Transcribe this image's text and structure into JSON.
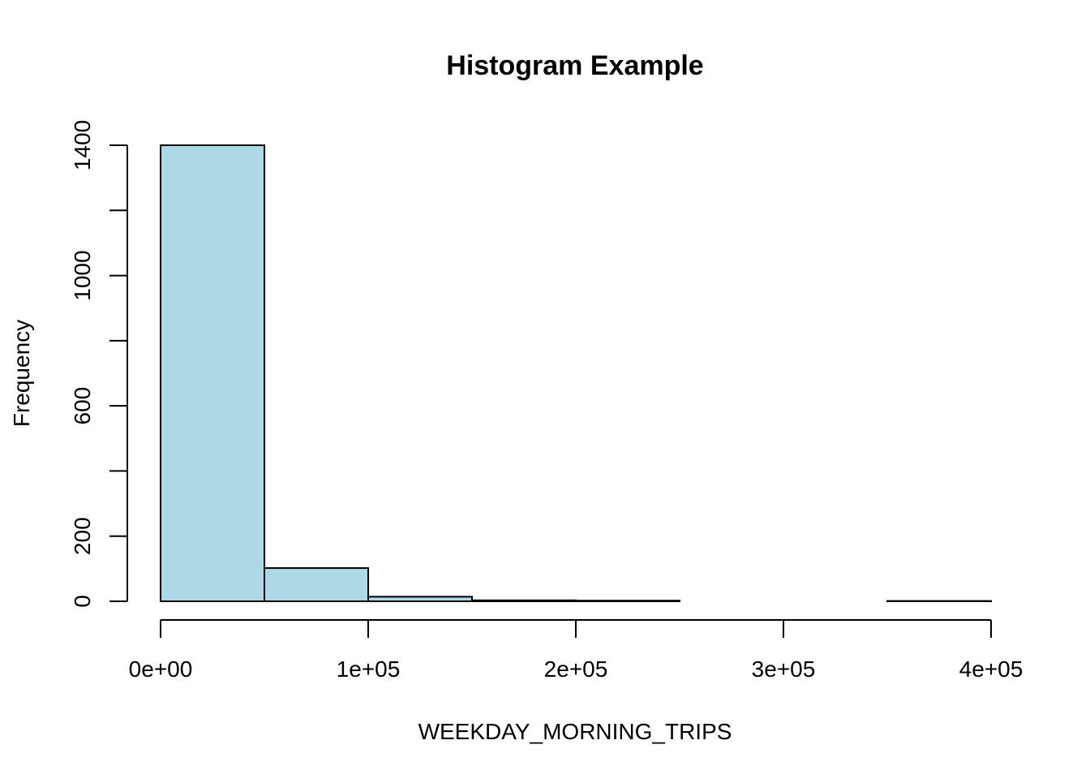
{
  "chart_data": {
    "type": "bar",
    "title": "Histogram Example",
    "xlabel": "WEEKDAY_MORNING_TRIPS",
    "ylabel": "Frequency",
    "bar_color": "#add8e6",
    "bins": [
      {
        "x0": 0,
        "x1": 50000,
        "count": 1400
      },
      {
        "x0": 50000,
        "x1": 100000,
        "count": 102
      },
      {
        "x0": 100000,
        "x1": 150000,
        "count": 14
      },
      {
        "x0": 150000,
        "x1": 200000,
        "count": 3
      },
      {
        "x0": 200000,
        "x1": 250000,
        "count": 2
      },
      {
        "x0": 250000,
        "x1": 300000,
        "count": 0
      },
      {
        "x0": 300000,
        "x1": 350000,
        "count": 0
      },
      {
        "x0": 350000,
        "x1": 400000,
        "count": 1
      }
    ],
    "xlim": [
      0,
      400000
    ],
    "ylim": [
      0,
      1400
    ],
    "x_ticks": [
      {
        "value": 0,
        "label": "0e+00"
      },
      {
        "value": 100000,
        "label": "1e+05"
      },
      {
        "value": 200000,
        "label": "2e+05"
      },
      {
        "value": 300000,
        "label": "3e+05"
      },
      {
        "value": 400000,
        "label": "4e+05"
      }
    ],
    "y_ticks": [
      {
        "value": 0,
        "label": "0"
      },
      {
        "value": 200,
        "label": "200"
      },
      {
        "value": 400,
        "label": ""
      },
      {
        "value": 600,
        "label": "600"
      },
      {
        "value": 800,
        "label": ""
      },
      {
        "value": 1000,
        "label": "1000"
      },
      {
        "value": 1200,
        "label": ""
      },
      {
        "value": 1400,
        "label": "1400"
      }
    ],
    "grid": false,
    "legend": "none"
  }
}
